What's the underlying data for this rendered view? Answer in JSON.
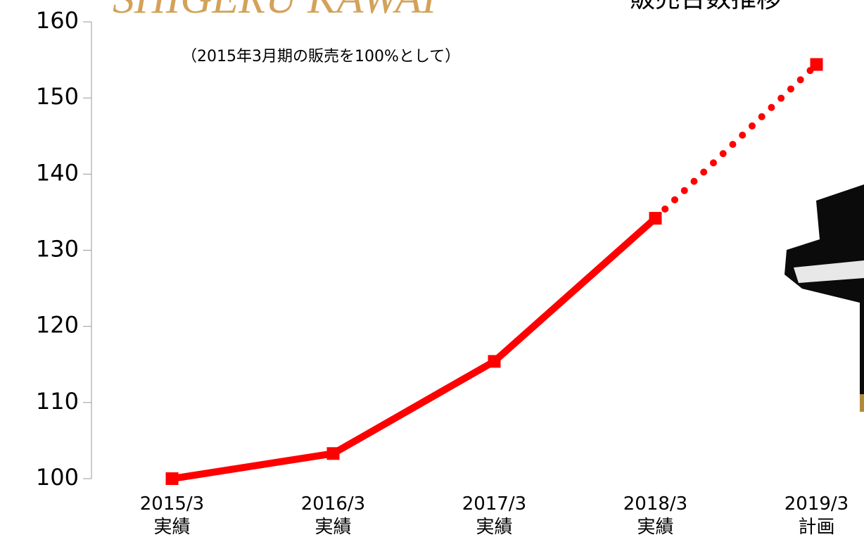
{
  "chart_data": {
    "type": "line",
    "title": "販売台数推移",
    "logo": "SHIGERU KAWAI",
    "subtitle": "（2015年3月期の販売を100%として）",
    "categories": [
      "2015/3\n実績",
      "2016/3\n実績",
      "2017/3\n実績",
      "2018/3\n実績",
      "2019/3\n計画"
    ],
    "series": [
      {
        "color": "#ff0000",
        "style": "solid",
        "values": [
          100,
          103.3,
          115.4,
          134.2,
          null
        ]
      },
      {
        "color": "#ff0000",
        "style": "dotted",
        "values": [
          null,
          null,
          null,
          134.2,
          154.4
        ]
      }
    ],
    "ylim": [
      100,
      160
    ],
    "yticks": [
      100,
      110,
      120,
      130,
      140,
      150,
      160
    ],
    "grid": false
  }
}
